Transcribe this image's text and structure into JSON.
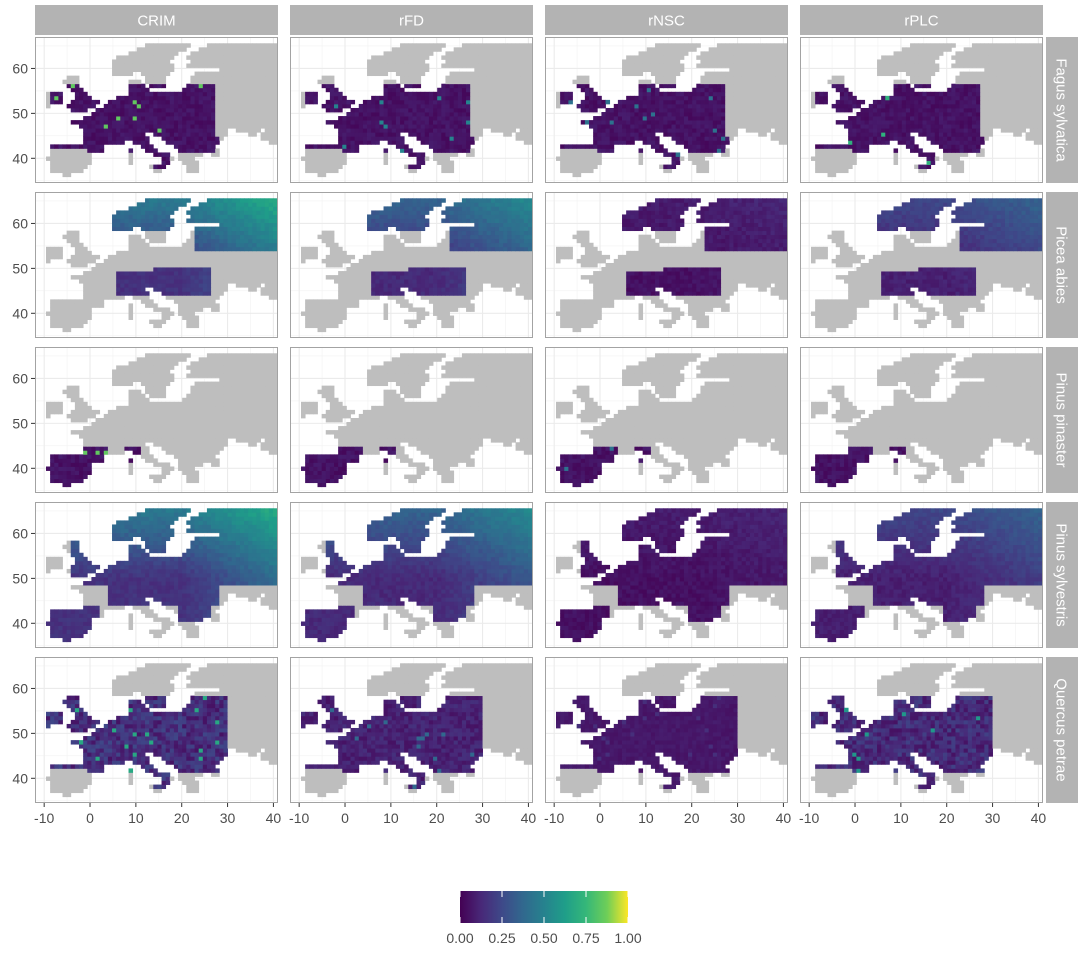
{
  "chart_data": {
    "type": "heatmap",
    "columns": [
      "CRIM",
      "rFD",
      "rNSC",
      "rPLC"
    ],
    "rows": [
      "Fagus sylvatica",
      "Picea abies",
      "Pinus pinaster",
      "Pinus sylvestris",
      "Quercus petrae"
    ],
    "x_ticks": [
      "-10",
      "0",
      "10",
      "20",
      "30",
      "40"
    ],
    "y_ticks": [
      "60",
      "50",
      "40"
    ],
    "xlim": [
      -12,
      41
    ],
    "ylim": [
      34.5,
      67
    ],
    "background_land_color": "#bebebe",
    "legend": {
      "placement": "bottom",
      "labels": [
        "0.00",
        "0.25",
        "0.50",
        "0.75",
        "1.00"
      ],
      "range": [
        0,
        1
      ],
      "colors": [
        "#440154",
        "#3b528b",
        "#21908c",
        "#5dc863",
        "#fde725"
      ]
    },
    "panel_descriptions": {
      "Fagus sylvatica": "distribution over central & western Europe, values mostly near 0.00 with hotspots up to ~0.75 in southern Italy and the Balkans",
      "Picea abies": "distribution over Scandinavia, Finland, Russia and Alps/Carpathians; CRIM and rFD 0.25–0.60 in the north, rNSC near 0.00",
      "Pinus pinaster": "distribution over Iberia and southern France/Italy, values near 0.00 with hotspots up to ~0.75 in Portugal",
      "Pinus sylvestris": "widespread distribution over northern and central Europe; CRIM 0.25–0.60, rFD lower, rNSC near 0.00",
      "Quercus petrae": "distribution over western and central Europe, CRIM with hotspots up to ~1.00 in Italy and the Carpathians"
    }
  }
}
